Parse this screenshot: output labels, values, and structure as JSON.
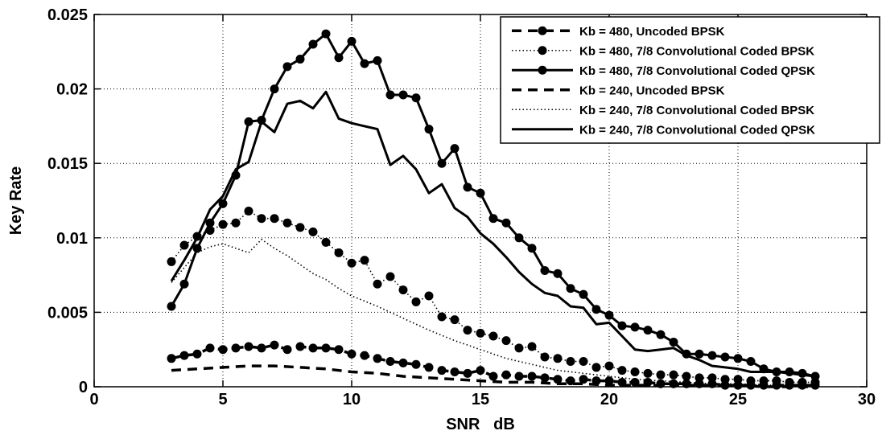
{
  "chart_data": {
    "type": "line",
    "title": "",
    "xlabel": "SNR   dB",
    "ylabel": "Key Rate",
    "xlim": [
      0,
      30
    ],
    "ylim": [
      0,
      0.025
    ],
    "xticks": [
      0,
      5,
      10,
      15,
      20,
      25,
      30
    ],
    "xtick_labels": [
      "0",
      "5",
      "10",
      "15",
      "20",
      "25",
      "30"
    ],
    "yticks": [
      0,
      0.005,
      0.01,
      0.015,
      0.02,
      0.025
    ],
    "ytick_labels": [
      "0",
      "0.005",
      "0.01",
      "0.015",
      "0.02",
      "0.025"
    ],
    "grid": true,
    "legend_position": "top-right",
    "series": [
      {
        "name": "Kb = 480, Uncoded BPSK",
        "style": "dashed",
        "marker": "dot",
        "x": [
          3.0,
          3.5,
          4.0,
          4.5,
          5.0,
          5.5,
          6.0,
          6.5,
          7.0,
          7.5,
          8.0,
          8.5,
          9.0,
          9.5,
          10.0,
          10.5,
          11.0,
          11.5,
          12.0,
          12.5,
          13.0,
          13.5,
          14.0,
          14.5,
          15.0,
          15.5,
          16.0,
          16.5,
          17.0,
          17.5,
          18.0,
          18.5,
          19.0,
          19.5,
          20.0,
          20.5,
          21.0,
          21.5,
          22.0,
          22.5,
          23.0,
          23.5,
          24.0,
          24.5,
          25.0,
          25.5,
          26.0,
          26.5,
          27.0,
          27.5,
          28.0
        ],
        "y": [
          0.0019,
          0.0021,
          0.0022,
          0.0026,
          0.0025,
          0.0026,
          0.0027,
          0.0026,
          0.0028,
          0.0025,
          0.0027,
          0.0026,
          0.0026,
          0.0025,
          0.0022,
          0.0021,
          0.0019,
          0.0017,
          0.0016,
          0.0015,
          0.0013,
          0.0011,
          0.001,
          0.0009,
          0.0011,
          0.0007,
          0.0008,
          0.0007,
          0.0007,
          0.0006,
          0.0005,
          0.0004,
          0.0005,
          0.0004,
          0.0004,
          0.0003,
          0.0003,
          0.0003,
          0.0002,
          0.0002,
          0.0002,
          0.0002,
          0.0002,
          0.0001,
          0.0001,
          0.0001,
          0.0001,
          0.0001,
          0.0001,
          0.0001,
          0.0001
        ]
      },
      {
        "name": "Kb = 480, 7/8 Convolutional Coded BPSK",
        "style": "dotted",
        "marker": "dot",
        "x": [
          3.0,
          3.5,
          4.0,
          4.5,
          5.0,
          5.5,
          6.0,
          6.5,
          7.0,
          7.5,
          8.0,
          8.5,
          9.0,
          9.5,
          10.0,
          10.5,
          11.0,
          11.5,
          12.0,
          12.5,
          13.0,
          13.5,
          14.0,
          14.5,
          15.0,
          15.5,
          16.0,
          16.5,
          17.0,
          17.5,
          18.0,
          18.5,
          19.0,
          19.5,
          20.0,
          20.5,
          21.0,
          21.5,
          22.0,
          22.5,
          23.0,
          23.5,
          24.0,
          24.5,
          25.0,
          25.5,
          26.0,
          26.5,
          27.0,
          27.5,
          28.0
        ],
        "y": [
          0.0084,
          0.0095,
          0.0101,
          0.0105,
          0.0109,
          0.011,
          0.0118,
          0.0113,
          0.0113,
          0.011,
          0.0107,
          0.0104,
          0.0097,
          0.009,
          0.0083,
          0.0085,
          0.0069,
          0.0074,
          0.0065,
          0.0057,
          0.0061,
          0.0047,
          0.0045,
          0.0038,
          0.0036,
          0.0034,
          0.0031,
          0.0026,
          0.0027,
          0.002,
          0.0019,
          0.0017,
          0.0017,
          0.0013,
          0.0014,
          0.0011,
          0.001,
          0.0009,
          0.0008,
          0.0008,
          0.0007,
          0.0006,
          0.0006,
          0.0005,
          0.0005,
          0.0004,
          0.0004,
          0.0004,
          0.0003,
          0.0003,
          0.0003
        ]
      },
      {
        "name": "Kb = 480, 7/8 Convolutional Coded QPSK",
        "style": "solid",
        "marker": "dot",
        "x": [
          3.0,
          3.5,
          4.0,
          4.5,
          5.0,
          5.5,
          6.0,
          6.5,
          7.0,
          7.5,
          8.0,
          8.5,
          9.0,
          9.5,
          10.0,
          10.5,
          11.0,
          11.5,
          12.0,
          12.5,
          13.0,
          13.5,
          14.0,
          14.5,
          15.0,
          15.5,
          16.0,
          16.5,
          17.0,
          17.5,
          18.0,
          18.5,
          19.0,
          19.5,
          20.0,
          20.5,
          21.0,
          21.5,
          22.0,
          22.5,
          23.0,
          23.5,
          24.0,
          24.5,
          25.0,
          25.5,
          26.0,
          26.5,
          27.0,
          27.5,
          28.0
        ],
        "y": [
          0.0054,
          0.0069,
          0.0093,
          0.011,
          0.0123,
          0.0142,
          0.0178,
          0.0179,
          0.02,
          0.0215,
          0.022,
          0.023,
          0.0237,
          0.0221,
          0.0232,
          0.0217,
          0.0219,
          0.0196,
          0.0196,
          0.0194,
          0.0173,
          0.015,
          0.016,
          0.0134,
          0.013,
          0.0113,
          0.011,
          0.01,
          0.0093,
          0.0078,
          0.0076,
          0.0066,
          0.0062,
          0.0052,
          0.0048,
          0.0041,
          0.004,
          0.0038,
          0.0035,
          0.003,
          0.0022,
          0.0022,
          0.0021,
          0.002,
          0.0019,
          0.0017,
          0.0012,
          0.001,
          0.001,
          0.0009,
          0.0007
        ]
      },
      {
        "name": "Kb = 240, Uncoded BPSK",
        "style": "dashed",
        "marker": "none",
        "x": [
          3.0,
          4.0,
          5.0,
          6.0,
          7.0,
          8.0,
          9.0,
          10.0,
          11.0,
          12.0,
          13.0,
          14.0,
          15.0,
          16.0,
          17.0,
          18.0,
          19.0,
          20.0,
          21.0,
          22.0,
          23.0,
          24.0,
          25.0,
          26.0,
          27.0,
          28.0
        ],
        "y": [
          0.0011,
          0.0012,
          0.0013,
          0.0014,
          0.0014,
          0.0013,
          0.0012,
          0.001,
          0.0009,
          0.0007,
          0.0006,
          0.0005,
          0.0004,
          0.0003,
          0.0003,
          0.0002,
          0.0002,
          0.0001,
          0.0001,
          0.0001,
          0.0001,
          0.0001,
          0.0001,
          0.0,
          0.0,
          0.0
        ]
      },
      {
        "name": "Kb = 240, 7/8 Convolutional Coded BPSK",
        "style": "dotted",
        "marker": "none",
        "x": [
          3.0,
          3.5,
          4.0,
          4.5,
          5.0,
          5.5,
          6.0,
          6.5,
          7.0,
          7.5,
          8.0,
          8.5,
          9.0,
          9.5,
          10.0,
          11.0,
          12.0,
          13.0,
          14.0,
          15.0,
          16.0,
          17.0,
          18.0,
          19.0,
          20.0,
          21.0,
          22.0,
          23.0,
          24.0,
          25.0,
          26.0,
          27.0,
          28.0
        ],
        "y": [
          0.007,
          0.008,
          0.009,
          0.0094,
          0.0096,
          0.0093,
          0.009,
          0.0099,
          0.0093,
          0.0088,
          0.0082,
          0.0076,
          0.0072,
          0.0066,
          0.0061,
          0.0054,
          0.0046,
          0.0038,
          0.0031,
          0.0025,
          0.0019,
          0.0015,
          0.0011,
          0.0009,
          0.0007,
          0.0005,
          0.0004,
          0.0003,
          0.0002,
          0.0002,
          0.0001,
          0.0001,
          0.0001
        ]
      },
      {
        "name": "Kb = 240, 7/8 Convolutional Coded QPSK",
        "style": "solid",
        "marker": "none",
        "x": [
          3.0,
          3.5,
          4.0,
          4.5,
          5.0,
          5.5,
          6.0,
          6.5,
          7.0,
          7.5,
          8.0,
          8.5,
          9.0,
          9.5,
          10.0,
          10.5,
          11.0,
          11.5,
          12.0,
          12.5,
          13.0,
          13.5,
          14.0,
          14.5,
          15.0,
          15.5,
          16.0,
          16.5,
          17.0,
          17.5,
          18.0,
          18.5,
          19.0,
          19.5,
          20.0,
          20.5,
          21.0,
          21.5,
          22.0,
          22.5,
          23.0,
          23.5,
          24.0,
          24.5,
          25.0,
          25.5,
          26.0,
          26.5,
          27.0,
          27.5,
          28.0
        ],
        "y": [
          0.0071,
          0.0085,
          0.01,
          0.0119,
          0.0128,
          0.0146,
          0.0151,
          0.0178,
          0.0171,
          0.019,
          0.0192,
          0.0187,
          0.0198,
          0.018,
          0.0177,
          0.0175,
          0.0173,
          0.0149,
          0.0155,
          0.0146,
          0.013,
          0.0136,
          0.012,
          0.0114,
          0.0103,
          0.0096,
          0.0087,
          0.0077,
          0.0069,
          0.0063,
          0.0061,
          0.0054,
          0.0053,
          0.0042,
          0.0043,
          0.0034,
          0.0025,
          0.0024,
          0.0025,
          0.0026,
          0.0021,
          0.0018,
          0.0014,
          0.0013,
          0.0012,
          0.001,
          0.001,
          0.001,
          0.0009,
          0.0008,
          0.0007
        ]
      }
    ]
  }
}
